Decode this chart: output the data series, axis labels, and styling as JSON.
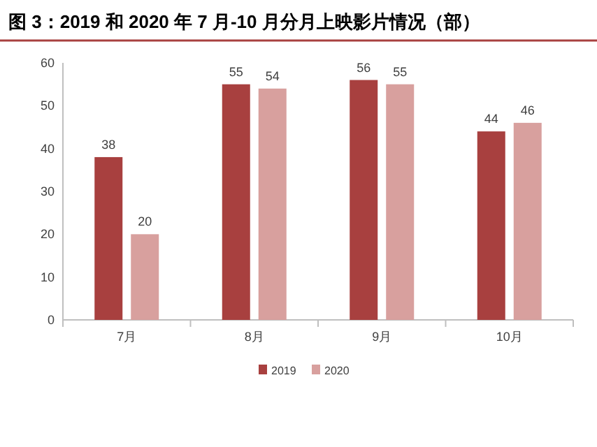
{
  "chart_data": {
    "type": "bar",
    "title": "图 3：2019 和 2020 年 7 月-10 月分月上映影片情况（部）",
    "categories": [
      "7月",
      "8月",
      "9月",
      "10月"
    ],
    "series": [
      {
        "name": "2019",
        "color": "#a8403f",
        "values": [
          38,
          55,
          56,
          44
        ]
      },
      {
        "name": "2020",
        "color": "#d8a09e",
        "values": [
          20,
          54,
          55,
          46
        ]
      }
    ],
    "ylim": [
      0,
      60
    ],
    "yticks": [
      0,
      10,
      20,
      30,
      40,
      50,
      60
    ],
    "grid": false,
    "legend": "bottom",
    "data_labels": true
  }
}
